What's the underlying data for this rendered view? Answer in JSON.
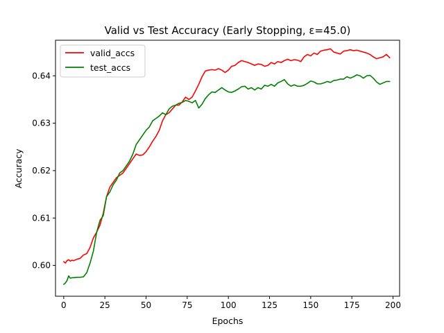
{
  "chart_data": {
    "type": "line",
    "title": "Valid vs Test Accuracy (Early Stopping, ε=45.0)",
    "xlabel": "Epochs",
    "ylabel": "Accuracy",
    "xlim": [
      -5,
      204
    ],
    "ylim": [
      0.5935,
      0.6475
    ],
    "xticks": [
      0,
      25,
      50,
      75,
      100,
      125,
      150,
      175,
      200
    ],
    "yticks": [
      0.6,
      0.61,
      0.62,
      0.63,
      0.64
    ],
    "ytick_labels": [
      "0.60",
      "0.61",
      "0.62",
      "0.63",
      "0.64"
    ],
    "grid": false,
    "legend_position": "top-left",
    "series": [
      {
        "name": "valid_accs",
        "color": "#ff0000",
        "x": [
          0,
          1,
          2,
          3,
          4,
          5,
          6,
          8,
          10,
          12,
          14,
          16,
          18,
          20,
          22,
          24,
          26,
          28,
          30,
          32,
          34,
          36,
          38,
          40,
          42,
          44,
          46,
          48,
          50,
          52,
          54,
          56,
          58,
          60,
          62,
          64,
          66,
          68,
          70,
          72,
          74,
          76,
          78,
          80,
          82,
          84,
          86,
          88,
          90,
          92,
          94,
          96,
          98,
          100,
          102,
          104,
          106,
          108,
          110,
          112,
          114,
          116,
          118,
          120,
          122,
          124,
          126,
          128,
          130,
          132,
          134,
          136,
          138,
          140,
          142,
          144,
          146,
          148,
          150,
          152,
          154,
          156,
          158,
          160,
          162,
          164,
          166,
          168,
          170,
          172,
          174,
          176,
          178,
          180,
          182,
          184,
          186,
          188,
          190,
          192,
          194,
          196,
          198
        ],
        "y": [
          0.6008,
          0.6005,
          0.601,
          0.6012,
          0.6009,
          0.6011,
          0.601,
          0.6013,
          0.6015,
          0.6022,
          0.6025,
          0.6038,
          0.6058,
          0.607,
          0.6085,
          0.611,
          0.6145,
          0.6165,
          0.6175,
          0.6185,
          0.619,
          0.6195,
          0.6205,
          0.6215,
          0.6225,
          0.6235,
          0.6232,
          0.6233,
          0.624,
          0.625,
          0.6262,
          0.6272,
          0.6285,
          0.6305,
          0.6318,
          0.6322,
          0.633,
          0.6338,
          0.6338,
          0.6345,
          0.6355,
          0.635,
          0.6355,
          0.6368,
          0.6382,
          0.6398,
          0.641,
          0.6412,
          0.6413,
          0.6412,
          0.6415,
          0.6412,
          0.6407,
          0.6412,
          0.642,
          0.6422,
          0.6428,
          0.6432,
          0.643,
          0.6428,
          0.6425,
          0.6422,
          0.6425,
          0.6424,
          0.642,
          0.6422,
          0.6428,
          0.6425,
          0.643,
          0.6428,
          0.6432,
          0.6435,
          0.6432,
          0.6434,
          0.6433,
          0.643,
          0.644,
          0.6445,
          0.6442,
          0.6448,
          0.6445,
          0.6452,
          0.6454,
          0.6455,
          0.6457,
          0.645,
          0.6448,
          0.6446,
          0.6452,
          0.6453,
          0.6455,
          0.6453,
          0.6454,
          0.6452,
          0.645,
          0.6448,
          0.6445,
          0.644,
          0.6436,
          0.6438,
          0.644,
          0.6445,
          0.6438
        ]
      },
      {
        "name": "test_accs",
        "color": "#008000",
        "x": [
          0,
          1,
          2,
          3,
          4,
          5,
          6,
          8,
          10,
          12,
          14,
          16,
          18,
          20,
          22,
          24,
          26,
          28,
          30,
          32,
          34,
          36,
          38,
          40,
          42,
          44,
          46,
          48,
          50,
          52,
          54,
          56,
          58,
          60,
          62,
          64,
          66,
          68,
          70,
          72,
          74,
          76,
          78,
          80,
          82,
          84,
          86,
          88,
          90,
          92,
          94,
          96,
          98,
          100,
          102,
          104,
          106,
          108,
          110,
          112,
          114,
          116,
          118,
          120,
          122,
          124,
          126,
          128,
          130,
          132,
          134,
          136,
          138,
          140,
          142,
          144,
          146,
          148,
          150,
          152,
          154,
          156,
          158,
          160,
          162,
          164,
          166,
          168,
          170,
          172,
          174,
          176,
          178,
          180,
          182,
          184,
          186,
          188,
          190,
          192,
          194,
          196,
          198
        ],
        "y": [
          0.596,
          0.5963,
          0.5968,
          0.5978,
          0.5973,
          0.5974,
          0.5974,
          0.5975,
          0.5975,
          0.5976,
          0.5985,
          0.6005,
          0.603,
          0.607,
          0.6095,
          0.6105,
          0.6145,
          0.6155,
          0.617,
          0.618,
          0.6195,
          0.62,
          0.621,
          0.622,
          0.6235,
          0.6255,
          0.6265,
          0.6275,
          0.6285,
          0.6292,
          0.6305,
          0.631,
          0.6315,
          0.6322,
          0.6318,
          0.633,
          0.6336,
          0.6338,
          0.6342,
          0.6344,
          0.6348,
          0.6346,
          0.6343,
          0.6348,
          0.6332,
          0.634,
          0.6352,
          0.636,
          0.6366,
          0.6365,
          0.637,
          0.6375,
          0.637,
          0.6366,
          0.6365,
          0.6368,
          0.6372,
          0.6377,
          0.6378,
          0.6372,
          0.6375,
          0.637,
          0.6375,
          0.6372,
          0.638,
          0.6378,
          0.6382,
          0.6378,
          0.6385,
          0.6388,
          0.6392,
          0.6383,
          0.6378,
          0.6381,
          0.6378,
          0.6378,
          0.638,
          0.6384,
          0.6389,
          0.6387,
          0.6383,
          0.6383,
          0.6385,
          0.6388,
          0.6386,
          0.639,
          0.6391,
          0.6393,
          0.6393,
          0.6398,
          0.6395,
          0.6398,
          0.6402,
          0.64,
          0.6395,
          0.64,
          0.6401,
          0.6395,
          0.6387,
          0.6382,
          0.6385,
          0.6388,
          0.6388
        ]
      }
    ]
  }
}
